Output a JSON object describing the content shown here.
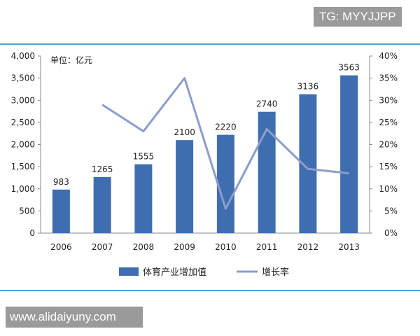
{
  "watermark_top": "TG: MYYJJPP",
  "watermark_bottom": "www.alidaiyuny.com",
  "colors": {
    "bar": "#3f6eb0",
    "line": "#8c9ccc",
    "axis": "#888888",
    "rule": "#4d9fd6",
    "text": "#222222"
  },
  "chart_data": {
    "type": "bar",
    "title": "",
    "unit_label": "单位：亿元",
    "categories": [
      "2006",
      "2007",
      "2008",
      "2009",
      "2010",
      "2011",
      "2012",
      "2013"
    ],
    "series": [
      {
        "name": "体育产业增加值",
        "type": "bar",
        "axis": "left",
        "values": [
          983,
          1265,
          1555,
          2100,
          2220,
          2740,
          3136,
          3563
        ]
      },
      {
        "name": "增长率",
        "type": "line",
        "axis": "right",
        "values": [
          null,
          29,
          23,
          35,
          5.5,
          23.5,
          14.5,
          13.5
        ]
      }
    ],
    "y_left": {
      "min": 0,
      "max": 4000,
      "ticks": [
        "0",
        "500",
        "1,000",
        "1,500",
        "2,000",
        "2,500",
        "3,000",
        "3,500",
        "4,000"
      ]
    },
    "y_right": {
      "min": 0,
      "max": 40,
      "ticks": [
        "0%",
        "5%",
        "10%",
        "15%",
        "20%",
        "25%",
        "30%",
        "35%",
        "40%"
      ]
    },
    "data_labels": [
      "983",
      "1265",
      "1555",
      "2100",
      "2220",
      "2740",
      "3136",
      "3563"
    ],
    "legend_position": "bottom",
    "grid": false
  }
}
